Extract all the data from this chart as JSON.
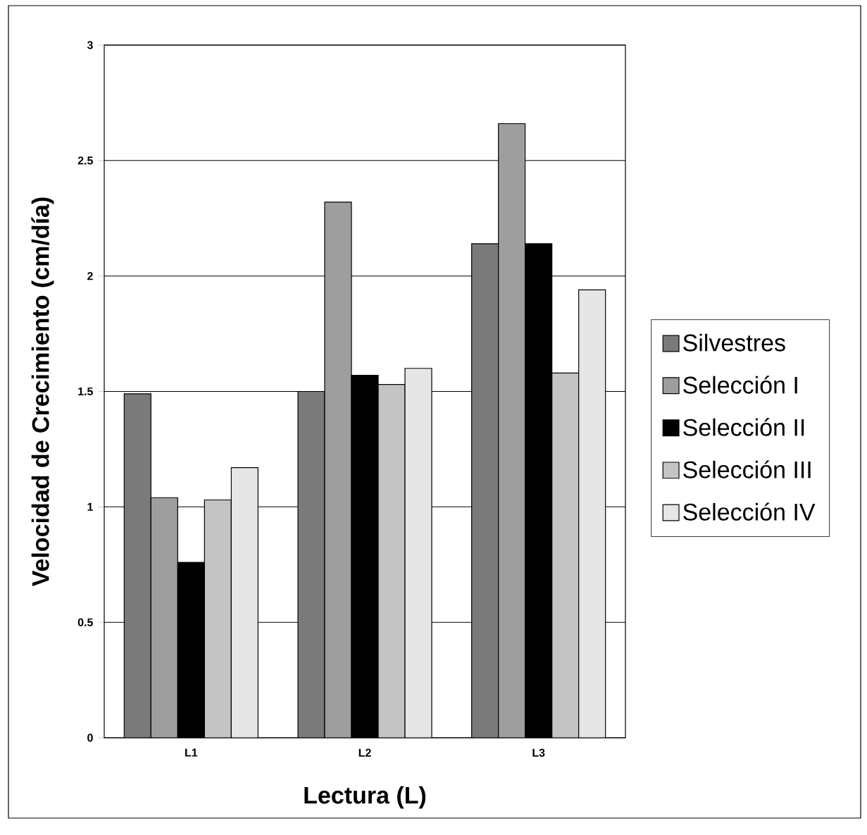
{
  "chart_data": {
    "type": "bar",
    "xlabel": "Lectura (L)",
    "ylabel": "Velocidad de Crecimiento (cm/día)",
    "categories": [
      "L1",
      "L2",
      "L3"
    ],
    "series": [
      {
        "name": "Silvestres",
        "color": "#7a7a7a",
        "values": [
          1.49,
          1.5,
          2.14
        ]
      },
      {
        "name": "Selección I",
        "color": "#9e9e9e",
        "values": [
          1.04,
          2.32,
          2.66
        ]
      },
      {
        "name": "Selección II",
        "color": "#000000",
        "values": [
          0.76,
          1.57,
          2.14
        ]
      },
      {
        "name": "Selección III",
        "color": "#c4c4c4",
        "values": [
          1.03,
          1.53,
          1.58
        ]
      },
      {
        "name": "Selección IV",
        "color": "#e6e6e6",
        "values": [
          1.17,
          1.6,
          1.94
        ]
      }
    ],
    "ylim": [
      0,
      3
    ],
    "yticks": [
      0,
      0.5,
      1,
      1.5,
      2,
      2.5,
      3
    ],
    "grid": "y",
    "legend": "right"
  }
}
